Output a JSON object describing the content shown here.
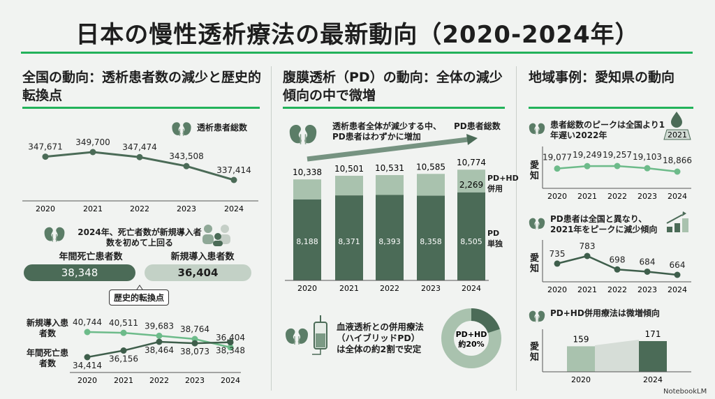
{
  "title": "日本の慢性透析療法の最新動向（2020-2024年）",
  "colors": {
    "accent": "#22b25a",
    "dark_green": "#4b6b57",
    "light_green": "#a9c2ae",
    "line_light": "#6dbb8a",
    "background": "#f1f3f1"
  },
  "left": {
    "heading": "全国の動向：透析患者数の減少と歴史的転換点",
    "chart_legend": "透析患者総数",
    "note": "2024年、死亡者数が新規導入者数を初めて上回る",
    "deaths_label": "年間死亡患者数",
    "deaths_value": "38,348",
    "new_label": "新規導入患者数",
    "new_value": "36,404",
    "callout": "歴史的転換点",
    "series_new_label": "新規導入患者数",
    "series_death_label": "年間死亡患者数"
  },
  "middle": {
    "heading": "腹膜透析（PD）の動向：全体の減少傾向の中で微増",
    "note": "透析患者全体が減少する中、PD患者はわずかに増加",
    "legend_total": "PD患者総数",
    "legend_hybrid": "PD+HD併用",
    "legend_pd_only": "PD単独",
    "hybrid_note": "血液透析との併用療法（ハイブリッドPD）は全体の約2割で安定",
    "donut_label": "PD+HD",
    "donut_value": "約20%"
  },
  "right": {
    "heading": "地域事例：愛知県の動向",
    "sub1": "患者総数のピークは全国より1年遅い2022年",
    "badge_year": "2021",
    "sub2": "PD患者は全国と異なり、2021年をピークに減少傾向",
    "sub3": "PD+HD併用療法は微増傾向",
    "axis_label": "愛知"
  },
  "brand": "NotebookLM",
  "chart_data": [
    {
      "id": "national_total",
      "type": "line",
      "title": "透析患者総数",
      "categories": [
        "2020",
        "2021",
        "2022",
        "2023",
        "2024"
      ],
      "values": [
        347671,
        349700,
        347474,
        343508,
        337414
      ],
      "labels": [
        "347,671",
        "349,700",
        "347,474",
        "343,508",
        "337,414"
      ]
    },
    {
      "id": "national_new_vs_death",
      "type": "line",
      "categories": [
        "2020",
        "2021",
        "2022",
        "2023",
        "2024"
      ],
      "series": [
        {
          "name": "新規導入患者数",
          "values": [
            40744,
            40511,
            39683,
            38764,
            36404
          ],
          "labels": [
            "40,744",
            "40,511",
            "39,683",
            "38,764",
            "36,404"
          ]
        },
        {
          "name": "年間死亡患者数",
          "values": [
            34414,
            36156,
            38464,
            38073,
            38348
          ],
          "labels": [
            "34,414",
            "36,156",
            "38,464",
            "38,073",
            "38,348"
          ]
        }
      ]
    },
    {
      "id": "pd_stacked",
      "type": "bar",
      "stacked": true,
      "categories": [
        "2020",
        "2021",
        "2022",
        "2023",
        "2024"
      ],
      "totals": [
        10338,
        10501,
        10531,
        10585,
        10774
      ],
      "total_labels": [
        "10,338",
        "10,501",
        "10,531",
        "10,585",
        "10,774"
      ],
      "pd_only": [
        8188,
        8371,
        8393,
        8358,
        8505
      ],
      "pd_only_labels": [
        "8,188",
        "8,371",
        "8,393",
        "8,358",
        "8,505"
      ],
      "hybrid_2024_label": "2,269"
    },
    {
      "id": "hybrid_share",
      "type": "pie",
      "donut": true,
      "values": [
        20,
        80
      ]
    },
    {
      "id": "aichi_total",
      "type": "line",
      "categories": [
        "2020",
        "2021",
        "2022",
        "2023",
        "2024"
      ],
      "values": [
        19077,
        19249,
        19257,
        19103,
        18866
      ],
      "labels": [
        "19,077",
        "19,249",
        "19,257",
        "19,103",
        "18,866"
      ]
    },
    {
      "id": "aichi_pd",
      "type": "line",
      "categories": [
        "2020",
        "2021",
        "2022",
        "2023",
        "2024"
      ],
      "values": [
        735,
        783,
        698,
        684,
        664
      ],
      "labels": [
        "735",
        "783",
        "698",
        "684",
        "664"
      ]
    },
    {
      "id": "aichi_hybrid",
      "type": "bar",
      "categories": [
        "2020",
        "2024"
      ],
      "values": [
        159,
        171
      ],
      "labels": [
        "159",
        "171"
      ]
    }
  ]
}
